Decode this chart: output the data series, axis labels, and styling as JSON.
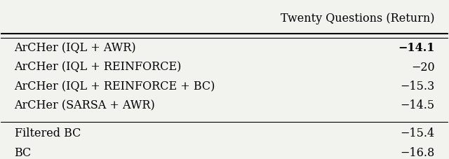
{
  "header": "Twenty Questions (Return)",
  "rows_group1": [
    {
      "label": "ArCHer (IQL + AWR)",
      "value": "−14.1",
      "bold_value": true
    },
    {
      "label": "ArCHer (IQL + REINFORCE)",
      "value": "−20",
      "bold_value": false
    },
    {
      "label": "ArCHer (IQL + REINFORCE + BC)",
      "value": "−15.3",
      "bold_value": false
    },
    {
      "label": "ArCHer (SARSA + AWR)",
      "value": "−14.5",
      "bold_value": false
    }
  ],
  "rows_group2": [
    {
      "label": "Filtered BC",
      "value": "−15.4",
      "bold_value": false
    },
    {
      "label": "BC",
      "value": "−16.8",
      "bold_value": false
    }
  ],
  "bg_color": "#f2f2ee",
  "font_size": 11.5,
  "header_font_size": 11.5
}
